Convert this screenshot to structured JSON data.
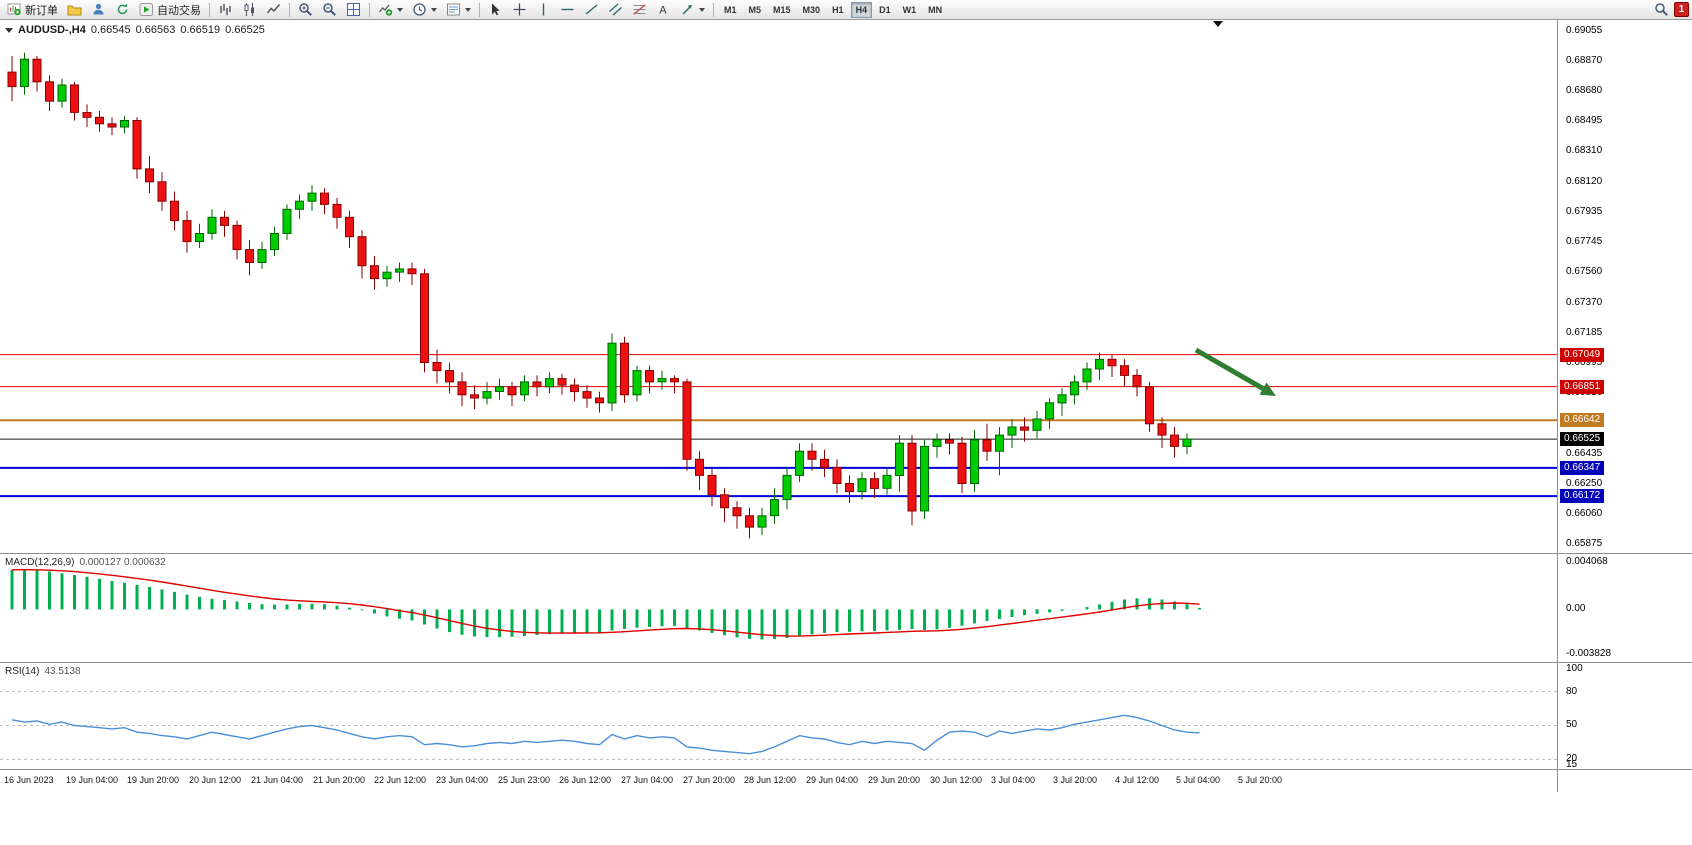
{
  "toolbar": {
    "new_order_label": "新订单",
    "auto_trading_label": "自动交易",
    "badge_count": "1",
    "timeframes": {
      "items": [
        "M1",
        "M5",
        "M15",
        "M30",
        "H1",
        "H4",
        "D1",
        "W1",
        "MN"
      ],
      "active": "H4"
    }
  },
  "chart": {
    "header": {
      "symbol": "AUDUSD-,H4",
      "o": "0.66545",
      "h": "0.66563",
      "l": "0.66519",
      "c": "0.66525"
    },
    "hlines": [
      {
        "price": 0.67049,
        "label": "0.67049",
        "color": "#e00000",
        "tag_bg": "#cc0000",
        "width": 1
      },
      {
        "price": 0.66851,
        "label": "0.66851",
        "color": "#e00000",
        "tag_bg": "#cc0000",
        "width": 1
      },
      {
        "price": 0.66642,
        "label": "0.66642",
        "color": "#c07a20",
        "tag_bg": "#c07a20",
        "width": 2
      },
      {
        "price": 0.66525,
        "label": "0.66525",
        "color": "#1a1a1a",
        "tag_bg": "#000000",
        "width": 1
      },
      {
        "price": 0.66347,
        "label": "0.66347",
        "color": "#0000dd",
        "tag_bg": "#0000bb",
        "width": 2
      },
      {
        "price": 0.66172,
        "label": "0.66172",
        "color": "#0000dd",
        "tag_bg": "#0000bb",
        "width": 2
      }
    ],
    "arrow": {
      "color": "#2e7d32"
    }
  },
  "chart_data": [
    {
      "type": "candlestick",
      "title": "AUDUSD H4",
      "up_color": "#00cc00",
      "down_color": "#ee1111",
      "up_border": "#006600",
      "down_border": "#880000",
      "y_axis": {
        "min": 0.65875,
        "max": 0.69055,
        "tick_labels": [
          "0.69055",
          "0.68870",
          "0.68680",
          "0.68495",
          "0.68310",
          "0.68120",
          "0.67935",
          "0.67745",
          "0.67560",
          "0.67370",
          "0.67185",
          "0.66995",
          "0.66810",
          "0.66620",
          "0.66435",
          "0.66250",
          "0.66060",
          "0.65875"
        ]
      },
      "x_axis_labels": [
        "16 Jun 2023",
        "19 Jun 04:00",
        "19 Jun 20:00",
        "20 Jun 12:00",
        "21 Jun 04:00",
        "21 Jun 20:00",
        "22 Jun 12:00",
        "23 Jun 04:00",
        "25 Jun 23:00",
        "26 Jun 12:00",
        "27 Jun 04:00",
        "27 Jun 20:00",
        "28 Jun 12:00",
        "29 Jun 04:00",
        "29 Jun 20:00",
        "30 Jun 12:00",
        "3 Jul 04:00",
        "3 Jul 20:00",
        "4 Jul 12:00",
        "5 Jul 04:00",
        "5 Jul 20:00"
      ],
      "candles": [
        [
          0.688,
          0.689,
          0.6862,
          0.6871
        ],
        [
          0.6871,
          0.6892,
          0.6866,
          0.6888
        ],
        [
          0.6888,
          0.689,
          0.6868,
          0.6874
        ],
        [
          0.6874,
          0.6878,
          0.6856,
          0.6862
        ],
        [
          0.6862,
          0.6876,
          0.6858,
          0.6872
        ],
        [
          0.6872,
          0.6874,
          0.685,
          0.6855
        ],
        [
          0.6855,
          0.686,
          0.6846,
          0.6852
        ],
        [
          0.6852,
          0.6856,
          0.6843,
          0.6848
        ],
        [
          0.6848,
          0.6852,
          0.6841,
          0.6846
        ],
        [
          0.6846,
          0.6853,
          0.6842,
          0.685
        ],
        [
          0.685,
          0.6852,
          0.6814,
          0.682
        ],
        [
          0.682,
          0.6828,
          0.6805,
          0.6812
        ],
        [
          0.6812,
          0.6818,
          0.6794,
          0.68
        ],
        [
          0.68,
          0.6806,
          0.6782,
          0.6788
        ],
        [
          0.6788,
          0.6794,
          0.6768,
          0.6775
        ],
        [
          0.6775,
          0.6786,
          0.6771,
          0.678
        ],
        [
          0.678,
          0.6795,
          0.6776,
          0.679
        ],
        [
          0.679,
          0.6794,
          0.6778,
          0.6785
        ],
        [
          0.6785,
          0.6788,
          0.6764,
          0.677
        ],
        [
          0.677,
          0.6776,
          0.6754,
          0.6762
        ],
        [
          0.6762,
          0.6775,
          0.6758,
          0.677
        ],
        [
          0.677,
          0.6784,
          0.6766,
          0.678
        ],
        [
          0.678,
          0.6798,
          0.6776,
          0.6795
        ],
        [
          0.6795,
          0.6804,
          0.6789,
          0.68
        ],
        [
          0.68,
          0.681,
          0.6794,
          0.6805
        ],
        [
          0.6805,
          0.6808,
          0.6792,
          0.6798
        ],
        [
          0.6798,
          0.6802,
          0.6783,
          0.679
        ],
        [
          0.679,
          0.6794,
          0.6771,
          0.6778
        ],
        [
          0.6778,
          0.6782,
          0.6752,
          0.676
        ],
        [
          0.676,
          0.6766,
          0.6745,
          0.6752
        ],
        [
          0.6752,
          0.676,
          0.6747,
          0.6756
        ],
        [
          0.6756,
          0.6762,
          0.675,
          0.6758
        ],
        [
          0.6758,
          0.6762,
          0.6748,
          0.6755
        ],
        [
          0.6755,
          0.6758,
          0.6694,
          0.67
        ],
        [
          0.67,
          0.6708,
          0.6687,
          0.6695
        ],
        [
          0.6695,
          0.67,
          0.6681,
          0.6688
        ],
        [
          0.6688,
          0.6694,
          0.6673,
          0.668
        ],
        [
          0.668,
          0.6686,
          0.6671,
          0.6678
        ],
        [
          0.6678,
          0.6688,
          0.6674,
          0.6682
        ],
        [
          0.6682,
          0.669,
          0.6677,
          0.6685
        ],
        [
          0.6685,
          0.6688,
          0.6673,
          0.668
        ],
        [
          0.668,
          0.6692,
          0.6676,
          0.6688
        ],
        [
          0.6688,
          0.6692,
          0.6679,
          0.6685
        ],
        [
          0.6685,
          0.6694,
          0.6681,
          0.669
        ],
        [
          0.669,
          0.6693,
          0.668,
          0.6686
        ],
        [
          0.6686,
          0.669,
          0.6676,
          0.6682
        ],
        [
          0.6682,
          0.6686,
          0.6672,
          0.6678
        ],
        [
          0.6678,
          0.6682,
          0.6669,
          0.6675
        ],
        [
          0.6675,
          0.6718,
          0.667,
          0.6712
        ],
        [
          0.6712,
          0.6716,
          0.6675,
          0.668
        ],
        [
          0.668,
          0.6698,
          0.6676,
          0.6695
        ],
        [
          0.6695,
          0.6698,
          0.6681,
          0.6688
        ],
        [
          0.6688,
          0.6695,
          0.6683,
          0.669
        ],
        [
          0.669,
          0.6692,
          0.6681,
          0.6688
        ],
        [
          0.6688,
          0.669,
          0.6633,
          0.664
        ],
        [
          0.664,
          0.6645,
          0.6621,
          0.663
        ],
        [
          0.663,
          0.6634,
          0.6611,
          0.6618
        ],
        [
          0.6618,
          0.6622,
          0.6601,
          0.661
        ],
        [
          0.661,
          0.6614,
          0.6597,
          0.6605
        ],
        [
          0.6605,
          0.661,
          0.6591,
          0.6598
        ],
        [
          0.6598,
          0.661,
          0.6593,
          0.6605
        ],
        [
          0.6605,
          0.6622,
          0.66,
          0.6615
        ],
        [
          0.6615,
          0.6635,
          0.6609,
          0.663
        ],
        [
          0.663,
          0.665,
          0.6626,
          0.6645
        ],
        [
          0.6645,
          0.665,
          0.6633,
          0.664
        ],
        [
          0.664,
          0.6646,
          0.6629,
          0.6635
        ],
        [
          0.6635,
          0.664,
          0.6619,
          0.6625
        ],
        [
          0.6625,
          0.663,
          0.6613,
          0.662
        ],
        [
          0.662,
          0.6632,
          0.6615,
          0.6628
        ],
        [
          0.6628,
          0.6632,
          0.6616,
          0.6622
        ],
        [
          0.6622,
          0.6635,
          0.6618,
          0.663
        ],
        [
          0.663,
          0.6655,
          0.662,
          0.665
        ],
        [
          0.665,
          0.6655,
          0.6599,
          0.6608
        ],
        [
          0.6608,
          0.6652,
          0.6603,
          0.6648
        ],
        [
          0.6648,
          0.6656,
          0.6641,
          0.6652
        ],
        [
          0.6652,
          0.6656,
          0.6643,
          0.665
        ],
        [
          0.665,
          0.6654,
          0.6619,
          0.6625
        ],
        [
          0.6625,
          0.6658,
          0.662,
          0.6652
        ],
        [
          0.6652,
          0.6662,
          0.6639,
          0.6645
        ],
        [
          0.6645,
          0.666,
          0.663,
          0.6655
        ],
        [
          0.6655,
          0.6665,
          0.6647,
          0.666
        ],
        [
          0.666,
          0.6666,
          0.6651,
          0.6658
        ],
        [
          0.6658,
          0.667,
          0.6653,
          0.6665
        ],
        [
          0.6665,
          0.6678,
          0.6659,
          0.6675
        ],
        [
          0.6675,
          0.6684,
          0.6667,
          0.668
        ],
        [
          0.668,
          0.6692,
          0.6674,
          0.6688
        ],
        [
          0.6688,
          0.67,
          0.6683,
          0.6696
        ],
        [
          0.6696,
          0.6706,
          0.6689,
          0.6702
        ],
        [
          0.6702,
          0.6705,
          0.6691,
          0.6698
        ],
        [
          0.6698,
          0.6702,
          0.6685,
          0.6692
        ],
        [
          0.6692,
          0.6696,
          0.6679,
          0.6685
        ],
        [
          0.6685,
          0.6688,
          0.6657,
          0.6662
        ],
        [
          0.6662,
          0.6666,
          0.6647,
          0.6655
        ],
        [
          0.6655,
          0.666,
          0.6641,
          0.6648
        ],
        [
          0.6648,
          0.6656,
          0.6643,
          0.66525
        ]
      ]
    },
    {
      "type": "bar",
      "name": "MACD histogram",
      "label": "MACD(12,26,9)",
      "values_text": "0.000127 0.000632",
      "histogram_color": "#00b050",
      "signal_color": "#e00000",
      "y_axis": {
        "min": -0.003828,
        "max": 0.004068,
        "tick_labels": [
          "0.004068",
          "0.00",
          "-0.003828"
        ]
      },
      "values": [
        0.0034,
        0.00345,
        0.00335,
        0.00325,
        0.0031,
        0.00295,
        0.0028,
        0.00262,
        0.00245,
        0.00228,
        0.0021,
        0.00192,
        0.00172,
        0.0015,
        0.00128,
        0.00108,
        0.00092,
        0.0008,
        0.00068,
        0.00055,
        0.00045,
        0.0004,
        0.00042,
        0.00048,
        0.0005,
        0.00045,
        0.00032,
        0.00015,
        -8e-05,
        -0.00035,
        -0.0006,
        -0.0008,
        -0.00095,
        -0.0013,
        -0.00165,
        -0.00195,
        -0.00218,
        -0.00232,
        -0.00238,
        -0.00238,
        -0.00235,
        -0.00228,
        -0.0022,
        -0.00212,
        -0.00205,
        -0.002,
        -0.00198,
        -0.00198,
        -0.0018,
        -0.00168,
        -0.00158,
        -0.0015,
        -0.00145,
        -0.00142,
        -0.0016,
        -0.0018,
        -0.00202,
        -0.00222,
        -0.0024,
        -0.00252,
        -0.00258,
        -0.00255,
        -0.00245,
        -0.0023,
        -0.00215,
        -0.00202,
        -0.00195,
        -0.00192,
        -0.00188,
        -0.00185,
        -0.0018,
        -0.00175,
        -0.00168,
        -0.00178,
        -0.00172,
        -0.00158,
        -0.0014,
        -0.0012,
        -0.001,
        -0.00082,
        -0.00065,
        -0.0005,
        -0.00038,
        -0.00025,
        -0.00012,
        2e-05,
        0.0002,
        0.00042,
        0.00065,
        0.00085,
        0.00095,
        0.00095,
        0.00085,
        0.00068,
        0.00045,
        0.000127
      ]
    },
    {
      "type": "line",
      "name": "RSI",
      "label": "RSI(14)",
      "value_text": "43.5138",
      "line_color": "#4a90d9",
      "levels": [
        80,
        50,
        20
      ],
      "y_axis": {
        "min": 15,
        "max": 100,
        "tick_labels": [
          "100",
          "80",
          "50",
          "20",
          "15"
        ]
      },
      "values": [
        55,
        53,
        54,
        51,
        53,
        50,
        49,
        48,
        47,
        48,
        44,
        43,
        41,
        40,
        38,
        41,
        44,
        42,
        40,
        38,
        41,
        44,
        47,
        49,
        50,
        48,
        46,
        43,
        40,
        38,
        40,
        41,
        40,
        33,
        34,
        33,
        31,
        32,
        34,
        35,
        34,
        36,
        35,
        36,
        37,
        36,
        34,
        33,
        42,
        38,
        41,
        39,
        40,
        39,
        31,
        30,
        28,
        27,
        26,
        25,
        27,
        31,
        36,
        41,
        39,
        38,
        35,
        33,
        36,
        34,
        36,
        35,
        34,
        28,
        37,
        44,
        45,
        44,
        40,
        45,
        43,
        45,
        47,
        46,
        48,
        51,
        53,
        55,
        57,
        59,
        57,
        54,
        50,
        46,
        44,
        43.5
      ]
    }
  ]
}
